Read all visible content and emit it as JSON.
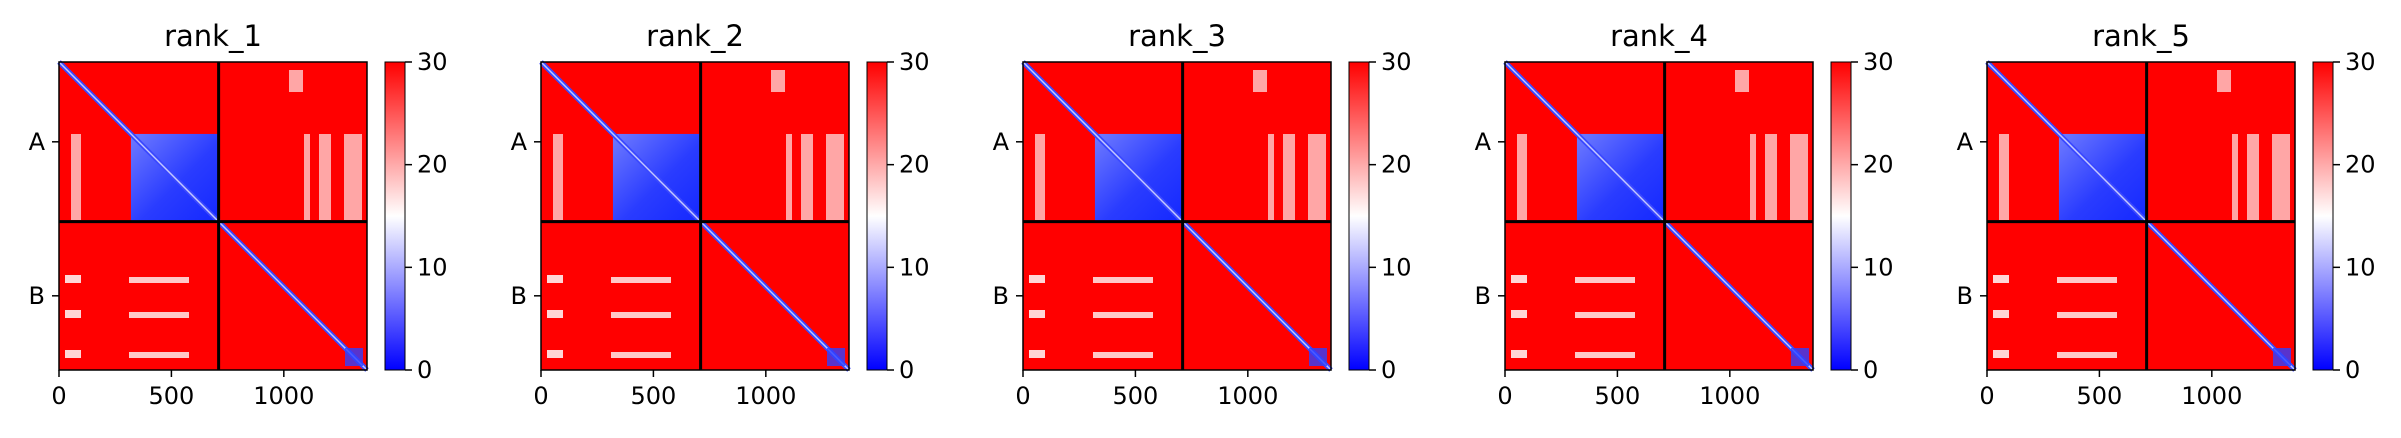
{
  "chart_data": {
    "type": "heatmap",
    "colormap": {
      "low": "#0000ff",
      "mid": "#ffffff",
      "high": "#ff0000"
    },
    "color_range": [
      0,
      30
    ],
    "colorbar_ticks": [
      0,
      10,
      20,
      30
    ],
    "colorbar_tick_labels": [
      "0",
      "10",
      "20",
      "30"
    ],
    "x_range": [
      0,
      1370
    ],
    "x_ticks": [
      0,
      500,
      1000
    ],
    "x_tick_labels": [
      "0",
      "500",
      "1000"
    ],
    "chain_boundary": 710,
    "chain_labels": [
      "A",
      "B"
    ],
    "chain_label_positions": [
      355,
      1040
    ],
    "panels": [
      {
        "title": "rank_1"
      },
      {
        "title": "rank_2"
      },
      {
        "title": "rank_3"
      },
      {
        "title": "rank_4"
      },
      {
        "title": "rank_5"
      }
    ]
  }
}
